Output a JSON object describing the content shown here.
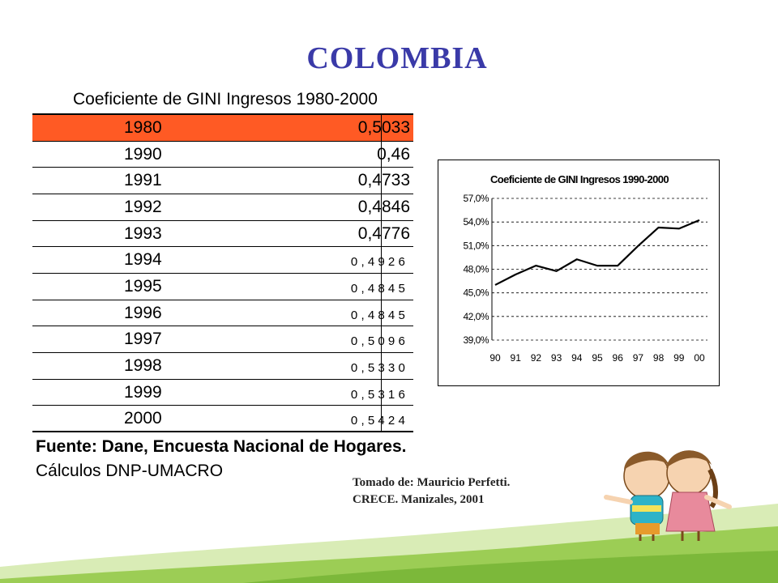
{
  "slide": {
    "title": "COLOMBIA"
  },
  "table": {
    "title": "Coeficiente de GINI Ingresos 1980-2000",
    "rows": [
      {
        "year": "1980",
        "value": "0,5033"
      },
      {
        "year": "1990",
        "value": "0,46"
      },
      {
        "year": "1991",
        "value": "0,4733"
      },
      {
        "year": "1992",
        "value": "0,4846"
      },
      {
        "year": "1993",
        "value": "0,4776"
      },
      {
        "year": "1994",
        "value": "0,4926"
      },
      {
        "year": "1995",
        "value": "0,4845"
      },
      {
        "year": "1996",
        "value": "0,4845"
      },
      {
        "year": "1997",
        "value": "0,5096"
      },
      {
        "year": "1998",
        "value": "0,5330"
      },
      {
        "year": "1999",
        "value": "0,5316"
      },
      {
        "year": "2000",
        "value": "0,5424"
      }
    ],
    "highlight_color": "#ff5a24"
  },
  "footer": {
    "source": "Fuente: Dane, Encuesta Nacional de Hogares.",
    "calc": "Cálculos DNP-UMACRO",
    "credit_line1": "Tomado de: Mauricio Perfetti.",
    "credit_line2": "CRECE. Manizales, 2001"
  },
  "colors": {
    "title": "#3a3aa8",
    "grass": "#8fc73e",
    "grass_light": "#cfe6a0"
  },
  "chart_data": {
    "type": "line",
    "title": "Coeficiente de GINI Ingresos 1990-2000",
    "xlabel": "",
    "ylabel": "",
    "categories": [
      "90",
      "91",
      "92",
      "93",
      "94",
      "95",
      "96",
      "97",
      "98",
      "99",
      "00"
    ],
    "series": [
      {
        "values": [
          46.0,
          47.33,
          48.46,
          47.76,
          49.26,
          48.45,
          48.45,
          50.96,
          53.3,
          53.16,
          54.24
        ]
      }
    ],
    "yticks": [
      "57,0%",
      "54,0%",
      "51,0%",
      "48,0%",
      "45,0%",
      "42,0%",
      "39,0%"
    ],
    "ylim": [
      39,
      57
    ],
    "grid": "dashed-horizontal",
    "legend": "none"
  }
}
